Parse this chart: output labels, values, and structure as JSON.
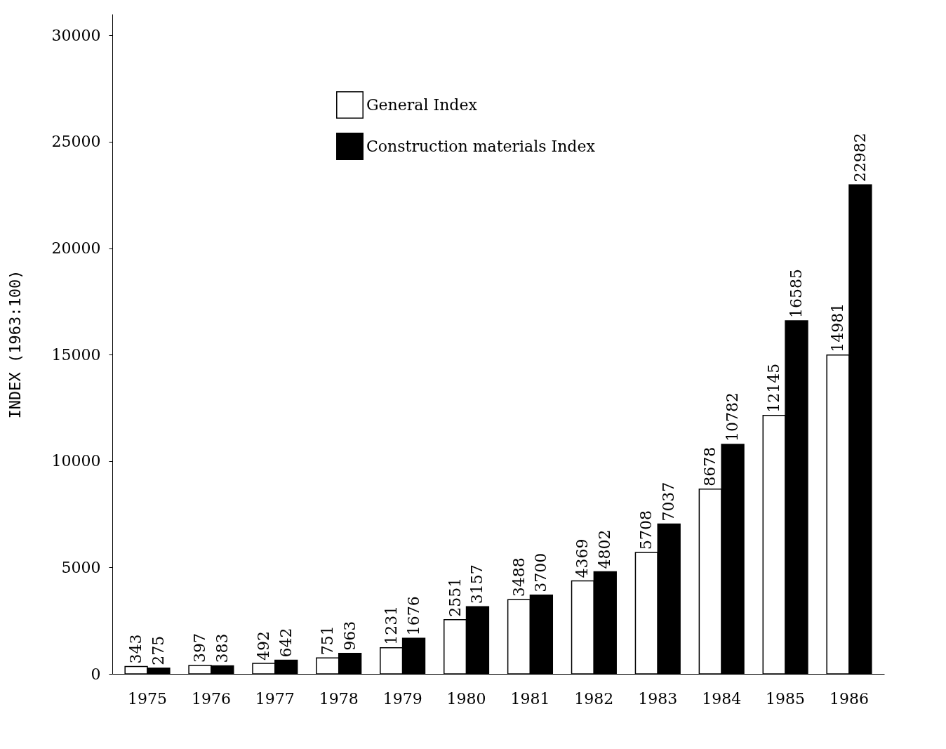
{
  "chart_data": {
    "type": "bar",
    "ylabel": "INDEX (1963:100)",
    "categories": [
      "1975",
      "1976",
      "1977",
      "1978",
      "1979",
      "1980",
      "1981",
      "1982",
      "1983",
      "1984",
      "1985",
      "1986"
    ],
    "series": [
      {
        "name": "General Index",
        "color": "#ffffff",
        "values": [
          343,
          397,
          492,
          751,
          1231,
          2551,
          3488,
          4369,
          5708,
          8678,
          12145,
          14981
        ]
      },
      {
        "name": "Construction materials Index",
        "color": "#000000",
        "values": [
          275,
          383,
          642,
          963,
          1676,
          3157,
          3700,
          4802,
          7037,
          10782,
          16585,
          22982
        ]
      }
    ],
    "ylim": [
      0,
      31000
    ],
    "yticks": [
      0,
      5000,
      10000,
      15000,
      20000,
      25000,
      30000
    ],
    "grid": false,
    "legend": "top",
    "data_labels": true
  }
}
